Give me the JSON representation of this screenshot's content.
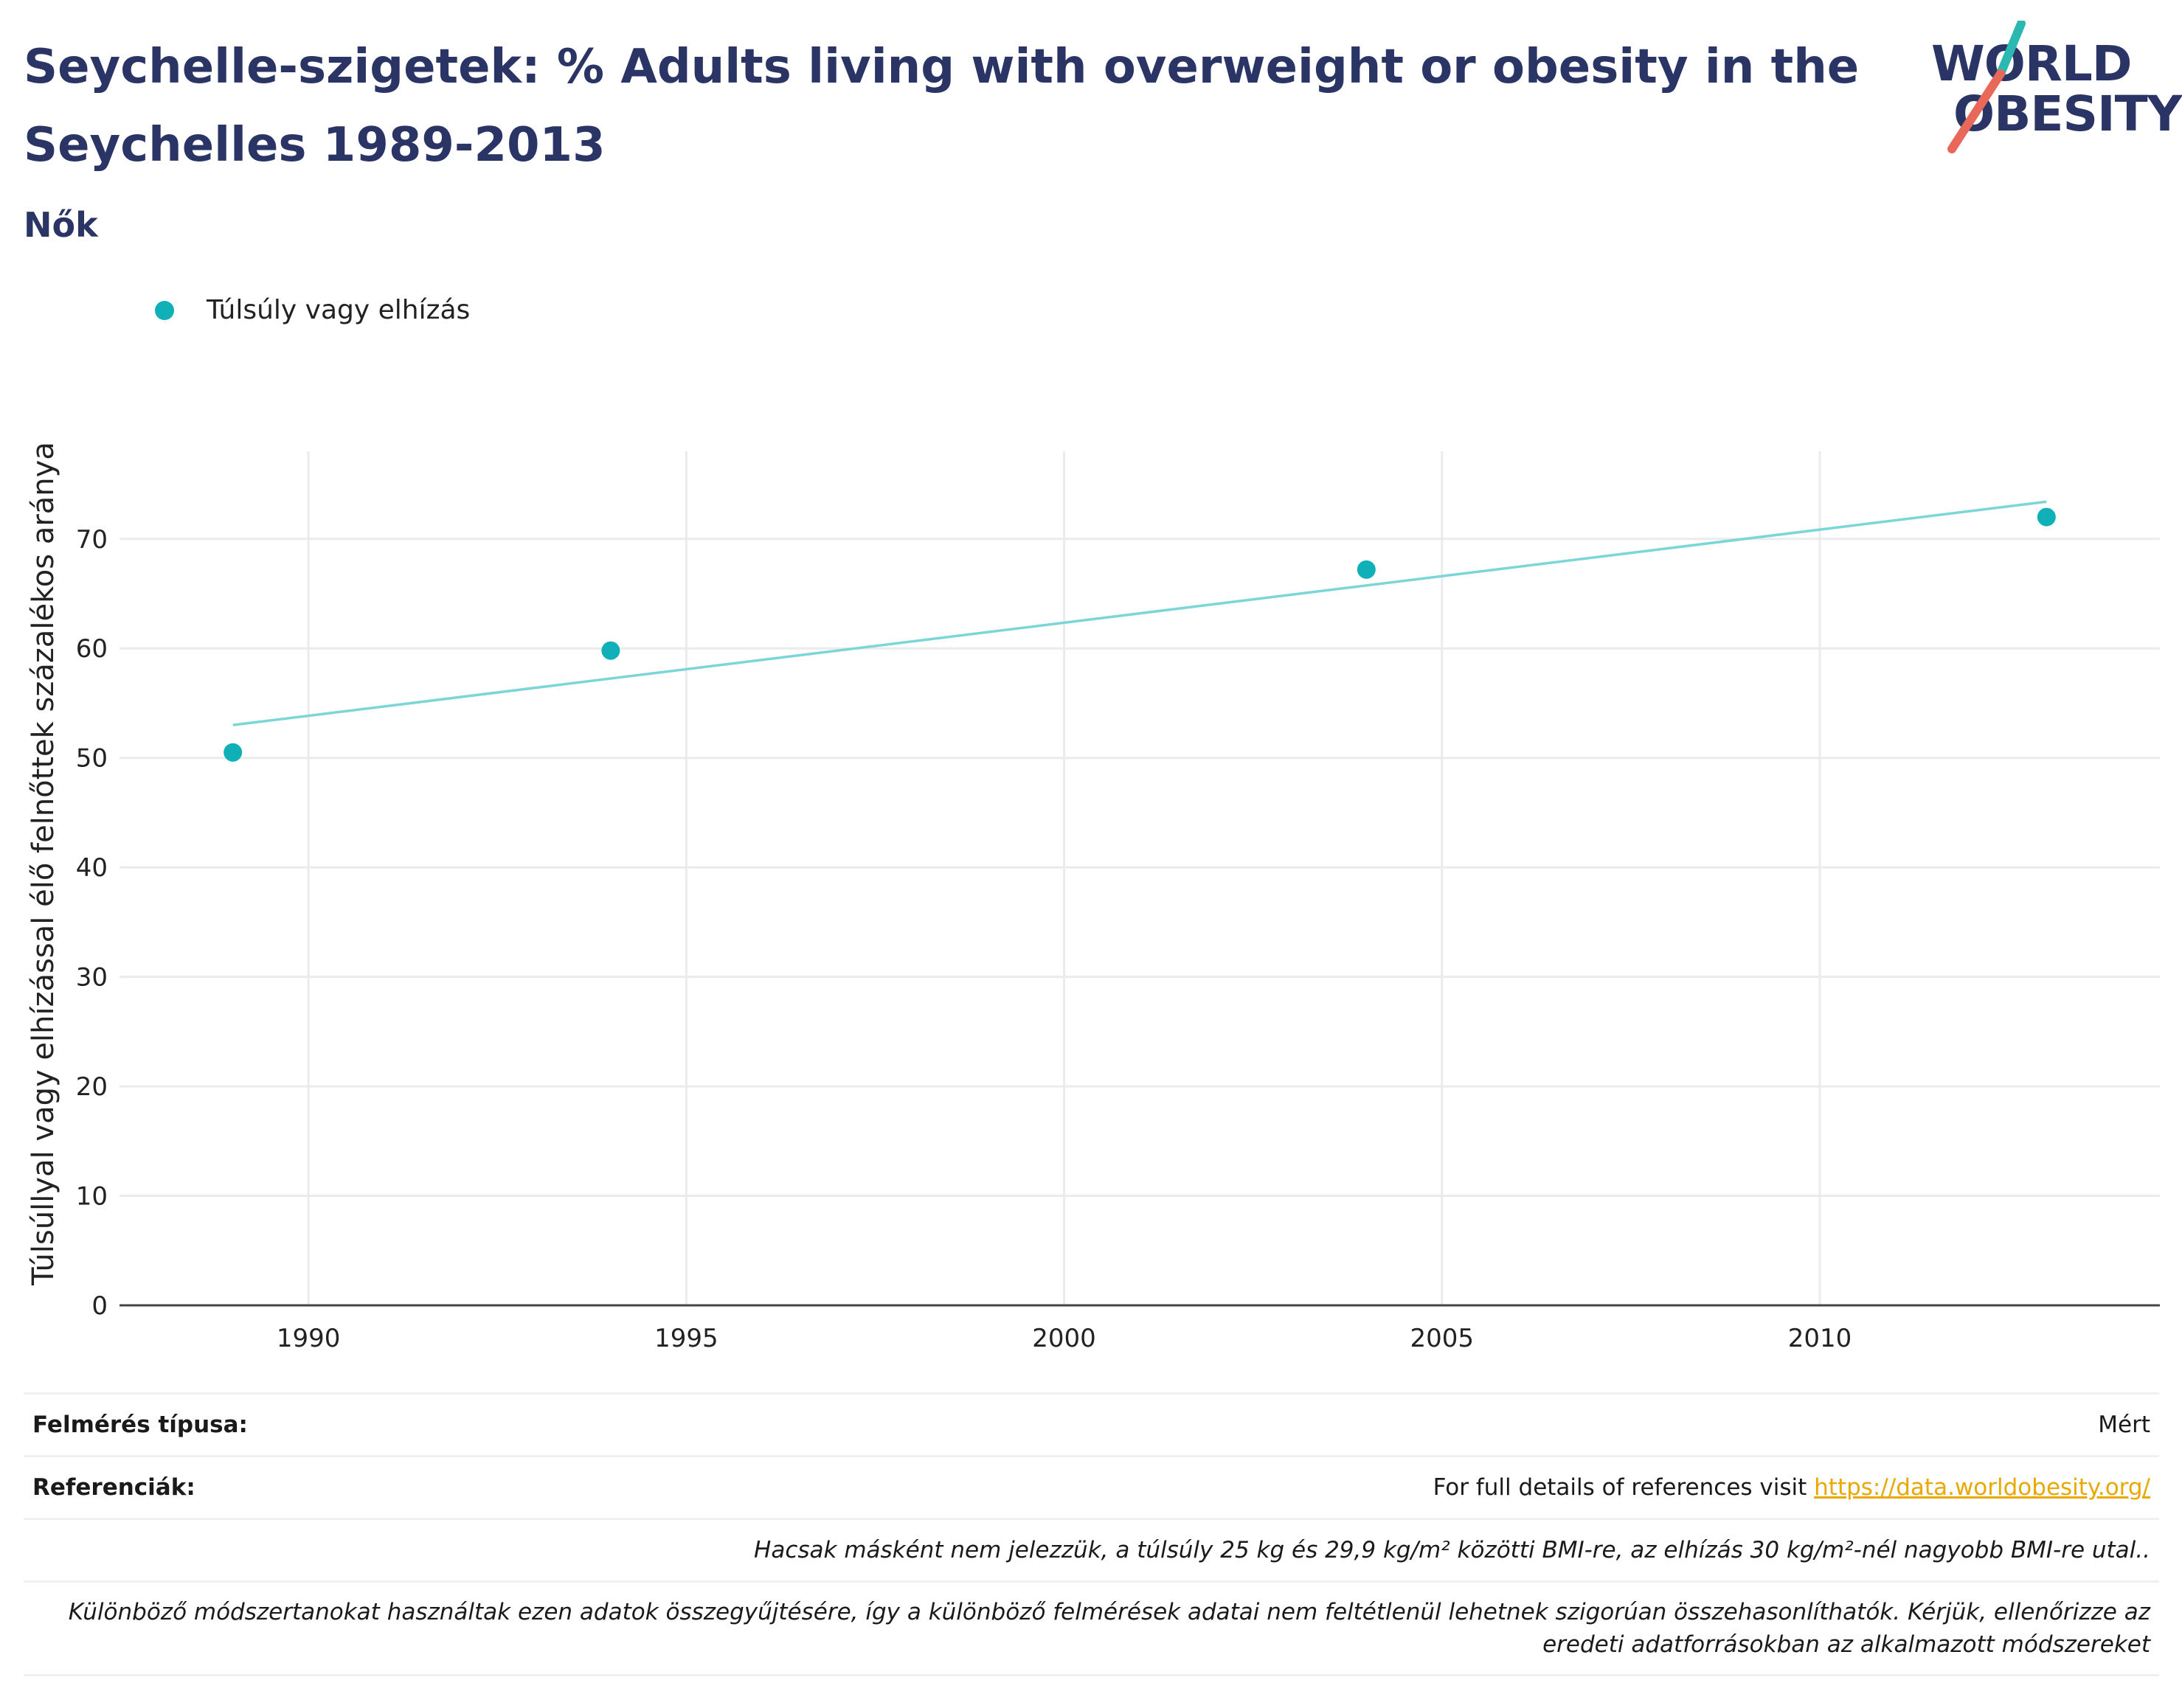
{
  "header": {
    "title": "Seychelle-szigetek: % Adults living with overweight or obesity in the Seychelles 1989-2013",
    "subtitle": "Nők"
  },
  "logo": {
    "line1": "WORLD",
    "line2": "OBESITY",
    "accent_teal": "#2ab8b0",
    "accent_red": "#e8685a"
  },
  "colors": {
    "text_dark": "#2b3565",
    "series": "#0fb0b8",
    "trend": "#7dd6d6",
    "grid": "#ebebeb",
    "axis": "#444444",
    "link": "#e8a800"
  },
  "chart_data": {
    "type": "scatter",
    "title": "",
    "xlabel": "",
    "ylabel": "Túlsúllyal vagy elhízással élő felnőttek százalékos aránya",
    "xlim": [
      1987.5,
      2014.5
    ],
    "ylim": [
      0,
      78
    ],
    "x_ticks": [
      1990,
      1995,
      2000,
      2005,
      2010
    ],
    "y_ticks": [
      0,
      10,
      20,
      30,
      40,
      50,
      60,
      70
    ],
    "grid": true,
    "legend_position": "top-left",
    "series": [
      {
        "name": "Túlsúly vagy elhízás",
        "color": "#0fb0b8",
        "x": [
          1989,
          1994,
          2004,
          2013
        ],
        "y": [
          50.5,
          59.8,
          67.2,
          72
        ]
      }
    ],
    "trendline": {
      "x": [
        1989,
        2013
      ],
      "y": [
        53.0,
        73.4
      ],
      "color": "#7dd6d6"
    }
  },
  "footer": {
    "survey_type_label": "Felmérés típusa:",
    "survey_type_value": "Mért",
    "references_label": "Referenciák:",
    "references_text": "For full details of references visit ",
    "references_link": "https://data.worldobesity.org/",
    "note1": "Hacsak másként nem jelezzük, a túlsúly 25 kg és 29,9 kg/m² közötti BMI-re, az elhízás 30 kg/m²-nél nagyobb BMI-re utal..",
    "note2_line1": "Különböző módszertanokat használtak ezen adatok összegyűjtésére, így a különböző felmérések adatai nem feltétlenül lehetnek szigorúan összehasonlíthatók. Kérjük, ellenőrizze az",
    "note2_line2": "eredeti adatforrásokban az alkalmazott módszereket"
  }
}
